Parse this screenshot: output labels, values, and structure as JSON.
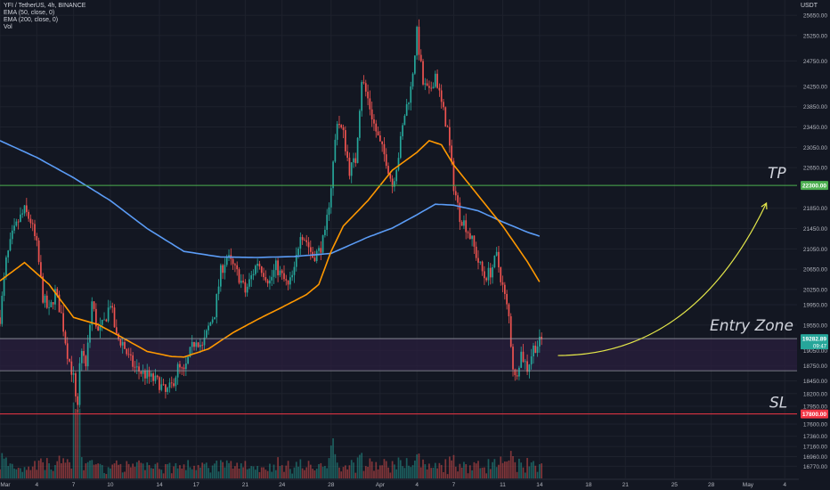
{
  "chart_data": {
    "type": "candlestick",
    "title": "YFI / TetherUS, 4h, BINANCE",
    "indicators": [
      "EMA (50, close, 0)",
      "EMA (200, close, 0)",
      "Vol"
    ],
    "currency": "USDT",
    "ylim": [
      16530,
      25950
    ],
    "x_range": [
      0,
      65
    ],
    "x_unit": "days since Mar 1",
    "x_ticks": [
      {
        "label": "Mar",
        "x": 0
      },
      {
        "label": "4",
        "x": 3
      },
      {
        "label": "7",
        "x": 6
      },
      {
        "label": "10",
        "x": 9
      },
      {
        "label": "14",
        "x": 13
      },
      {
        "label": "17",
        "x": 16
      },
      {
        "label": "21",
        "x": 20
      },
      {
        "label": "24",
        "x": 23
      },
      {
        "label": "28",
        "x": 27
      },
      {
        "label": "Apr",
        "x": 31
      },
      {
        "label": "4",
        "x": 34
      },
      {
        "label": "7",
        "x": 37
      },
      {
        "label": "11",
        "x": 41
      },
      {
        "label": "14",
        "x": 44
      },
      {
        "label": "18",
        "x": 48
      },
      {
        "label": "21",
        "x": 51
      },
      {
        "label": "25",
        "x": 55
      },
      {
        "label": "28",
        "x": 58
      },
      {
        "label": "May",
        "x": 61
      },
      {
        "label": "4",
        "x": 64
      }
    ],
    "y_ticks": [
      "25650.00",
      "25250.00",
      "24750.00",
      "24250.00",
      "23850.00",
      "23450.00",
      "23050.00",
      "22650.00",
      "21850.00",
      "21450.00",
      "21050.00",
      "20650.00",
      "20250.00",
      "19950.00",
      "19550.00",
      "19050.00",
      "18750.00",
      "18450.00",
      "18200.00",
      "17950.00",
      "17600.00",
      "17360.00",
      "17160.00",
      "16960.00",
      "16770.00"
    ],
    "price_anchors": [
      [
        0,
        19700
      ],
      [
        0.5,
        20800
      ],
      [
        1,
        21300
      ],
      [
        1.5,
        21600
      ],
      [
        2,
        21800
      ],
      [
        2.5,
        21600
      ],
      [
        3,
        21100
      ],
      [
        3.5,
        20100
      ],
      [
        4,
        19800
      ],
      [
        4.5,
        20200
      ],
      [
        5,
        19750
      ],
      [
        5.5,
        19000
      ],
      [
        6,
        18500
      ],
      [
        6.3,
        17900
      ],
      [
        6.6,
        19200
      ],
      [
        7,
        18700
      ],
      [
        7.5,
        20000
      ],
      [
        8,
        19400
      ],
      [
        8.5,
        19600
      ],
      [
        9,
        20000
      ],
      [
        9.5,
        19300
      ],
      [
        10,
        19200
      ],
      [
        10.5,
        18900
      ],
      [
        11,
        18700
      ],
      [
        12,
        18550
      ],
      [
        13,
        18400
      ],
      [
        13.5,
        18200
      ],
      [
        14,
        18350
      ],
      [
        14.5,
        18700
      ],
      [
        15,
        18600
      ],
      [
        15.5,
        19000
      ],
      [
        16,
        19300
      ],
      [
        16.5,
        19100
      ],
      [
        17,
        19500
      ],
      [
        17.5,
        19800
      ],
      [
        18,
        20600
      ],
      [
        18.5,
        20900
      ],
      [
        19,
        20700
      ],
      [
        19.5,
        20500
      ],
      [
        20,
        20200
      ],
      [
        20.5,
        20500
      ],
      [
        21,
        20800
      ],
      [
        21.5,
        20600
      ],
      [
        22,
        20400
      ],
      [
        22.5,
        20700
      ],
      [
        23,
        20500
      ],
      [
        23.5,
        20300
      ],
      [
        24,
        20600
      ],
      [
        24.5,
        21400
      ],
      [
        25,
        21200
      ],
      [
        25.5,
        20900
      ],
      [
        26,
        21000
      ],
      [
        26.5,
        21300
      ],
      [
        27,
        22300
      ],
      [
        27.5,
        23600
      ],
      [
        28,
        23300
      ],
      [
        28.5,
        22600
      ],
      [
        29,
        22800
      ],
      [
        29.5,
        24400
      ],
      [
        30,
        24000
      ],
      [
        30.5,
        23500
      ],
      [
        31,
        23100
      ],
      [
        31.5,
        22800
      ],
      [
        32,
        22300
      ],
      [
        32.5,
        22900
      ],
      [
        33,
        23700
      ],
      [
        33.5,
        24200
      ],
      [
        34,
        25300
      ],
      [
        34.5,
        24300
      ],
      [
        35,
        24100
      ],
      [
        35.5,
        24500
      ],
      [
        36,
        23900
      ],
      [
        36.5,
        23400
      ],
      [
        37,
        22300
      ],
      [
        37.5,
        21700
      ],
      [
        38,
        21500
      ],
      [
        38.5,
        21200
      ],
      [
        39,
        20800
      ],
      [
        39.5,
        20500
      ],
      [
        40,
        20600
      ],
      [
        40.5,
        20900
      ],
      [
        41,
        20300
      ],
      [
        41.5,
        19700
      ],
      [
        41.8,
        18800
      ],
      [
        42,
        18500
      ],
      [
        42.5,
        19000
      ],
      [
        43,
        18700
      ],
      [
        43.5,
        19100
      ],
      [
        44,
        19200
      ],
      [
        44.3,
        19280
      ]
    ],
    "ema50_anchors": [
      [
        0,
        20420
      ],
      [
        2,
        20780
      ],
      [
        4,
        20350
      ],
      [
        6,
        19700
      ],
      [
        8,
        19560
      ],
      [
        10,
        19300
      ],
      [
        12,
        19030
      ],
      [
        14,
        18930
      ],
      [
        15,
        18920
      ],
      [
        17,
        19080
      ],
      [
        19,
        19400
      ],
      [
        21,
        19660
      ],
      [
        23,
        19900
      ],
      [
        25,
        20150
      ],
      [
        26,
        20350
      ],
      [
        27,
        21000
      ],
      [
        28,
        21500
      ],
      [
        30,
        22000
      ],
      [
        32,
        22600
      ],
      [
        34,
        22950
      ],
      [
        35,
        23180
      ],
      [
        36,
        23100
      ],
      [
        37,
        22700
      ],
      [
        39,
        22100
      ],
      [
        41,
        21500
      ],
      [
        43,
        20800
      ],
      [
        44,
        20400
      ]
    ],
    "ema200_anchors": [
      [
        0,
        23180
      ],
      [
        3,
        22850
      ],
      [
        6,
        22450
      ],
      [
        9,
        22000
      ],
      [
        12,
        21450
      ],
      [
        15,
        21000
      ],
      [
        18,
        20890
      ],
      [
        21,
        20880
      ],
      [
        24,
        20900
      ],
      [
        27,
        20960
      ],
      [
        30,
        21280
      ],
      [
        32,
        21460
      ],
      [
        34,
        21720
      ],
      [
        35.5,
        21930
      ],
      [
        37,
        21910
      ],
      [
        39,
        21800
      ],
      [
        41,
        21580
      ],
      [
        43,
        21380
      ],
      [
        44,
        21300
      ]
    ],
    "levels": {
      "tp": {
        "price": 22300,
        "label": "TP",
        "tag": "22300.00",
        "color": "#4caf50"
      },
      "entry_top": {
        "price": 19282.89,
        "tag": "19282.89",
        "timer": "09:47"
      },
      "entry_bottom": {
        "price": 18650
      },
      "entry_label": "Entry Zone",
      "sl": {
        "price": 17800,
        "label": "SL",
        "tag": "17800.00",
        "color": "#f23645"
      }
    },
    "arrow": {
      "from": [
        45.5,
        18950
      ],
      "to": [
        62.5,
        21950
      ],
      "color": "#e3e64a"
    },
    "colors": {
      "up": "#26a69a",
      "down": "#ef5350",
      "ema50": "#ff9800",
      "ema200": "#5b9cf6",
      "background": "#131722",
      "grid": "#1e222d",
      "zone": "#2a1f3d"
    }
  }
}
